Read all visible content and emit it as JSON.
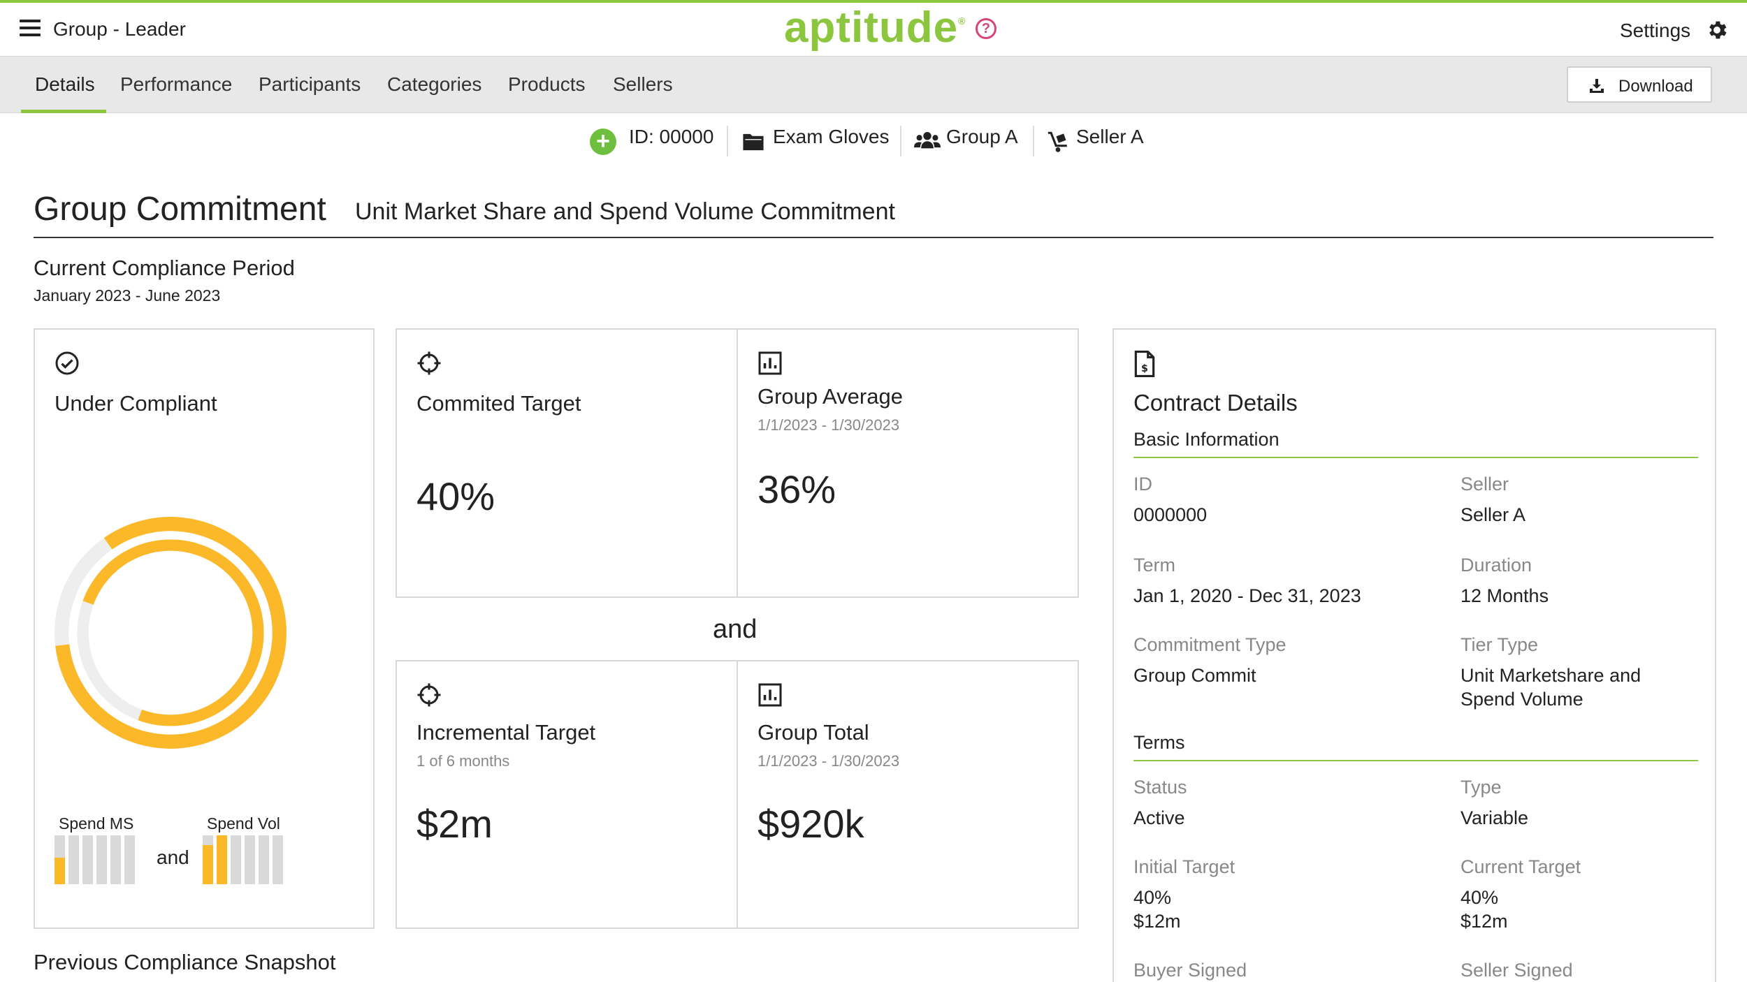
{
  "header": {
    "group_title": "Group - Leader",
    "brand": "aptitude",
    "brand_mark": "®",
    "help_glyph": "?",
    "settings_label": "Settings"
  },
  "tabs": {
    "items": [
      "Details",
      "Performance",
      "Participants",
      "Categories",
      "Products",
      "Sellers"
    ],
    "active": "Details",
    "download_label": "Download"
  },
  "meta": {
    "id": "ID: 00000",
    "product": "Exam Gloves",
    "group": "Group A",
    "seller": "Seller A"
  },
  "title": {
    "main": "Group Commitment",
    "subtitle": "Unit Market Share and Spend Volume Commitment"
  },
  "period": {
    "title": "Current Compliance Period",
    "range": "January 2023 - June 2023"
  },
  "compliance": {
    "status": "Under Compliant",
    "spend_ms_label": "Spend MS",
    "spend_vol_label": "Spend Vol",
    "and_label": "and",
    "spend_ms_bars": [
      0.55,
      0,
      0,
      0,
      0,
      0
    ],
    "spend_vol_bars": [
      0.8,
      1.0,
      0,
      0,
      0,
      0
    ]
  },
  "cards": {
    "committed_target": {
      "title": "Commited Target",
      "value": "40%"
    },
    "group_average": {
      "title": "Group Average",
      "date": "1/1/2023 - 1/30/2023",
      "value": "36%"
    },
    "and_label": "and",
    "incremental_target": {
      "title": "Incremental Target",
      "sub": "1 of 6 months",
      "value": "$2m"
    },
    "group_total": {
      "title": "Group Total",
      "date": "1/1/2023 - 1/30/2023",
      "value": "$920k"
    }
  },
  "previous_snapshot": "Previous Compliance Snapshot",
  "contract": {
    "title": "Contract Details",
    "basic_info": "Basic Information",
    "id_label": "ID",
    "id_value": "0000000",
    "seller_label": "Seller",
    "seller_value": "Seller A",
    "term_label": "Term",
    "term_value": "Jan 1, 2020 - Dec 31, 2023",
    "duration_label": "Duration",
    "duration_value": "12 Months",
    "commitment_type_label": "Commitment Type",
    "commitment_type_value": "Group Commit",
    "tier_type_label": "Tier Type",
    "tier_type_value_1": "Unit Marketshare and",
    "tier_type_value_2": "Spend Volume",
    "terms_label": "Terms",
    "status_label": "Status",
    "status_value": "Active",
    "type_label": "Type",
    "type_value": "Variable",
    "initial_target_label": "Initial Target",
    "initial_target_pct": "40%",
    "initial_target_amt": "$12m",
    "current_target_label": "Current Target",
    "current_target_pct": "40%",
    "current_target_amt": "$12m",
    "buyer_signed_label": "Buyer Signed",
    "seller_signed_label": "Seller Signed"
  },
  "colors": {
    "accent": "#8cc63f",
    "ring": "#fbb829",
    "ring_track": "#eeeeee",
    "help": "#d6457a"
  }
}
